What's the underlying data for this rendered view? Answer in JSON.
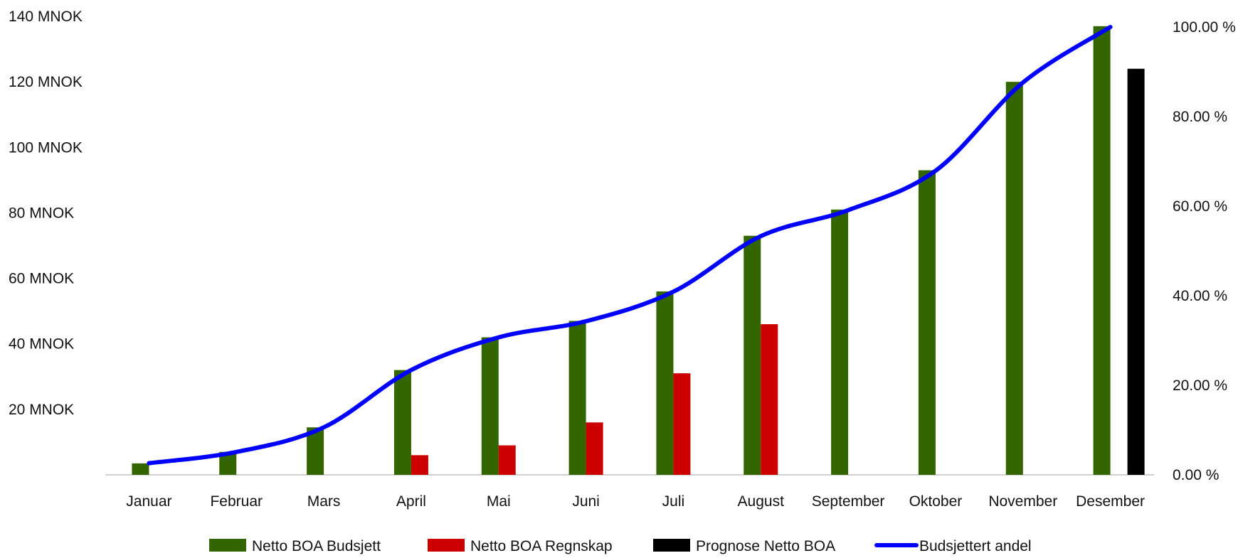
{
  "chart_data": {
    "type": "bar",
    "categories": [
      "Januar",
      "Februar",
      "Mars",
      "April",
      "Mai",
      "Juni",
      "Juli",
      "August",
      "September",
      "Oktober",
      "November",
      "Desember"
    ],
    "series": [
      {
        "name": "Netto BOA Budsjett",
        "type": "bar",
        "axis": "left",
        "color": "#336600",
        "values": [
          3.5,
          7,
          14.5,
          32,
          42,
          47,
          56,
          73,
          81,
          93,
          120,
          137
        ]
      },
      {
        "name": "Netto BOA Regnskap",
        "type": "bar",
        "axis": "left",
        "color": "#cc0000",
        "values": [
          null,
          null,
          null,
          6,
          9,
          16,
          31,
          46,
          null,
          null,
          null,
          null
        ]
      },
      {
        "name": "Prognose Netto BOA",
        "type": "bar",
        "axis": "left",
        "color": "#000000",
        "values": [
          null,
          null,
          null,
          null,
          null,
          null,
          null,
          null,
          null,
          null,
          null,
          124
        ]
      },
      {
        "name": "Budsjettert andel",
        "type": "line",
        "axis": "right",
        "color": "#0000ff",
        "values": [
          2.6,
          5.1,
          10.6,
          23.4,
          30.7,
          34.3,
          40.9,
          53.3,
          59.1,
          67.9,
          87.6,
          100
        ]
      }
    ],
    "y_left": {
      "min": 0,
      "max": 140,
      "ticks": [
        140,
        120,
        100,
        80,
        60,
        40,
        20
      ],
      "tick_labels": [
        "140 MNOK",
        "120 MNOK",
        "100 MNOK",
        "80 MNOK",
        "60 MNOK",
        "40 MNOK",
        "20 MNOK"
      ]
    },
    "y_right": {
      "min": 0,
      "max": 100,
      "ticks": [
        100,
        80,
        60,
        40,
        20,
        0
      ],
      "tick_labels": [
        "100.00 %",
        "80.00 %",
        "60.00 %",
        "40.00 %",
        "20.00 %",
        "0.00 %"
      ]
    },
    "legend": {
      "position": "bottom",
      "items": [
        {
          "label": "Netto BOA Budsjett",
          "color": "#336600",
          "shape": "bar"
        },
        {
          "label": "Netto BOA Regnskap",
          "color": "#cc0000",
          "shape": "bar"
        },
        {
          "label": "Prognose Netto BOA",
          "color": "#000000",
          "shape": "bar"
        },
        {
          "label": "Budsjettert andel",
          "color": "#0000ff",
          "shape": "line"
        }
      ]
    },
    "grid": false
  }
}
